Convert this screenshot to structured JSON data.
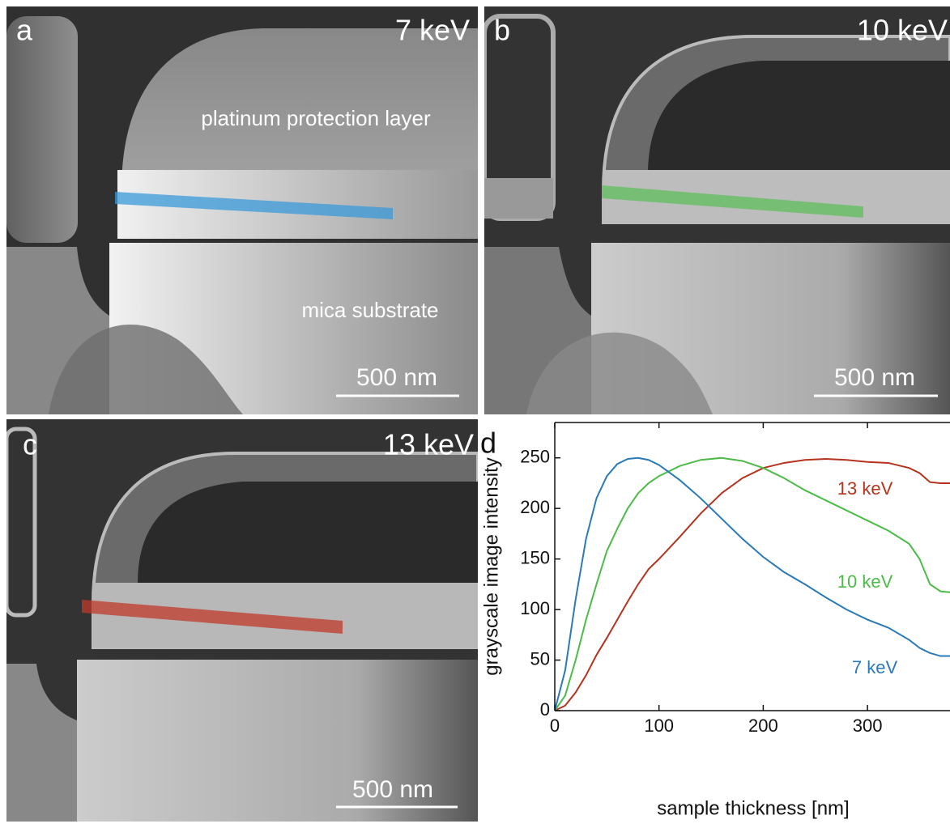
{
  "panels": [
    {
      "letter": "a",
      "energy": "7 keV",
      "notes": [
        "platinum protection layer",
        "mica substrate"
      ],
      "scale": "500 nm"
    },
    {
      "letter": "b",
      "energy": "10 keV",
      "scale": "500 nm"
    },
    {
      "letter": "c",
      "energy": "13 keV",
      "scale": "500 nm"
    },
    {
      "letter": "d"
    }
  ],
  "chart_data": {
    "type": "line",
    "x_label": "sample thickness [nm]",
    "y_label": "grayscale image intensity",
    "x": [
      0,
      10,
      20,
      30,
      40,
      50,
      60,
      70,
      80,
      90,
      100,
      120,
      140,
      160,
      180,
      200,
      220,
      240,
      260,
      280,
      300,
      320,
      340,
      350,
      360,
      370,
      380
    ],
    "series": [
      {
        "name": "13 keV",
        "color": "#b5331f",
        "values": [
          0,
          5,
          18,
          35,
          55,
          72,
          90,
          108,
          125,
          140,
          150,
          172,
          195,
          215,
          230,
          240,
          245,
          248,
          249,
          248,
          246,
          245,
          240,
          235,
          226,
          225,
          225
        ]
      },
      {
        "name": "10 keV",
        "color": "#4cbb47",
        "values": [
          0,
          15,
          50,
          90,
          125,
          158,
          180,
          200,
          215,
          225,
          232,
          242,
          248,
          250,
          247,
          240,
          230,
          218,
          208,
          198,
          188,
          178,
          165,
          150,
          125,
          118,
          117
        ]
      },
      {
        "name": "7 keV",
        "color": "#2a7ab8",
        "values": [
          0,
          40,
          110,
          170,
          210,
          232,
          244,
          249,
          250,
          248,
          243,
          228,
          210,
          190,
          170,
          152,
          137,
          125,
          112,
          100,
          90,
          82,
          70,
          62,
          57,
          54,
          54
        ]
      }
    ],
    "xlim": [
      0,
      380
    ],
    "ylim": [
      0,
      285
    ],
    "xticks": [
      0,
      100,
      200,
      300
    ],
    "yticks": [
      0,
      50,
      100,
      150,
      200,
      250
    ]
  }
}
